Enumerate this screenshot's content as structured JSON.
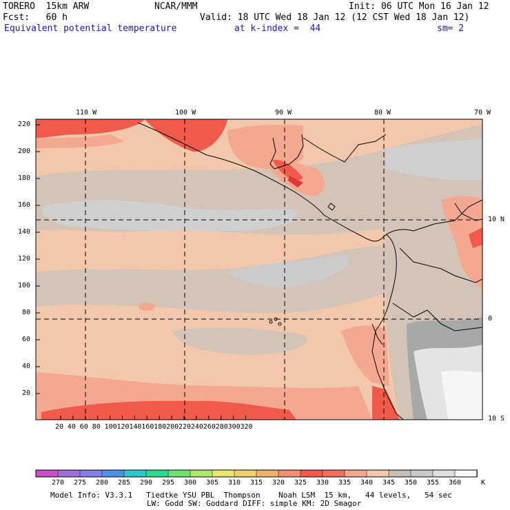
{
  "header": {
    "model": "TORERO  15km ARW",
    "center": "NCAR/MMM",
    "init": "Init: 06 UTC Mon 16 Jan 12",
    "fcst": "Fcst:   60 h",
    "valid": "Valid: 18 UTC Wed 18 Jan 12 (12 CST Wed 18 Jan 12)",
    "field": "Equivalent potential temperature",
    "level": "at k-index =  44",
    "smoothing": "sm= 2"
  },
  "map": {
    "lon_labels": [
      "110 W",
      "100 W",
      "90 W",
      "80 W",
      "70 W"
    ],
    "lat_labels": [
      "10 N",
      "0",
      "10 S"
    ],
    "grid_y_labels": [
      "220",
      "200",
      "180",
      "160",
      "140",
      "120",
      "100",
      "80",
      "60",
      "40",
      "20"
    ],
    "grid_x_labels": [
      "20",
      "40",
      "60",
      "80",
      "100",
      "120",
      "140",
      "160",
      "180",
      "200",
      "220",
      "240",
      "260",
      "280",
      "300",
      "320"
    ]
  },
  "colorbar": {
    "unit": "K",
    "labels": [
      "270",
      "275",
      "280",
      "285",
      "290",
      "295",
      "300",
      "305",
      "310",
      "315",
      "320",
      "325",
      "330",
      "335",
      "340",
      "345",
      "350",
      "355",
      "360"
    ],
    "colors": [
      "#c850c8",
      "#a070d8",
      "#8080e8",
      "#5090e8",
      "#30c8c8",
      "#30d890",
      "#70e070",
      "#b0e870",
      "#e8e870",
      "#f0d070",
      "#f0b070",
      "#f09070",
      "#f05a4a",
      "#f07060",
      "#f4a890",
      "#f3c7ac",
      "#c8c0b8",
      "#c8c8c8",
      "#e0e0e0",
      "#f6f6f6"
    ]
  },
  "footer": {
    "line1": "Model Info: V3.3.1   Tiedtke YSU PBL  Thompson    Noah LSM  15 km,   44 levels,   54 sec",
    "line2": "LW: Godd SW: Goddard DIFF: simple KM: 2D Smagor"
  },
  "field_colors": {
    "deep_red": "#f05a4a",
    "salmon": "#f4a890",
    "peach": "#f3c7ac",
    "tan_gray": "#d4c4b8",
    "gray": "#c8c8c8",
    "dark_gray": "#a8a8a8",
    "light_gray": "#e4e4e4",
    "white": "#f6f6f6"
  }
}
